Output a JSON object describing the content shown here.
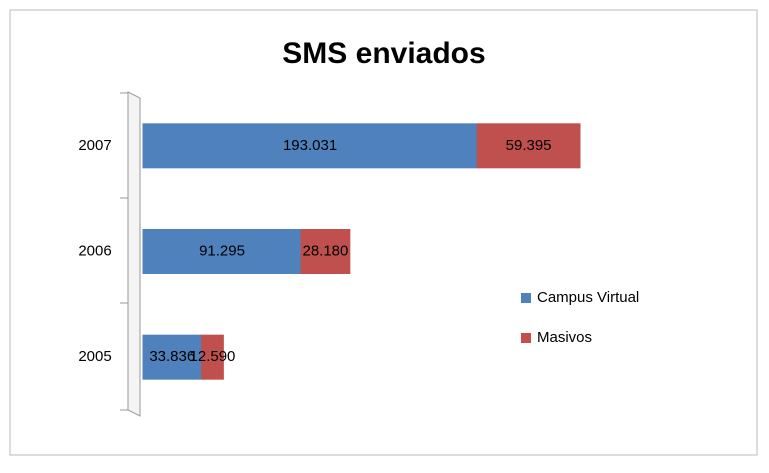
{
  "chart_data": {
    "type": "bar",
    "orientation": "horizontal",
    "stacked": true,
    "title": "SMS enviados",
    "categories": [
      "2005",
      "2006",
      "2007"
    ],
    "series": [
      {
        "name": "Campus Virtual",
        "color": "#4f81bd",
        "values": [
          33836,
          91295,
          193031
        ],
        "value_labels": [
          "33.836",
          "91.295",
          "193.031"
        ]
      },
      {
        "name": "Masivos",
        "color": "#c0504d",
        "values": [
          12590,
          28180,
          59395
        ],
        "value_labels": [
          "12.590",
          "28.180",
          "59.395"
        ]
      }
    ],
    "legend": "right"
  }
}
